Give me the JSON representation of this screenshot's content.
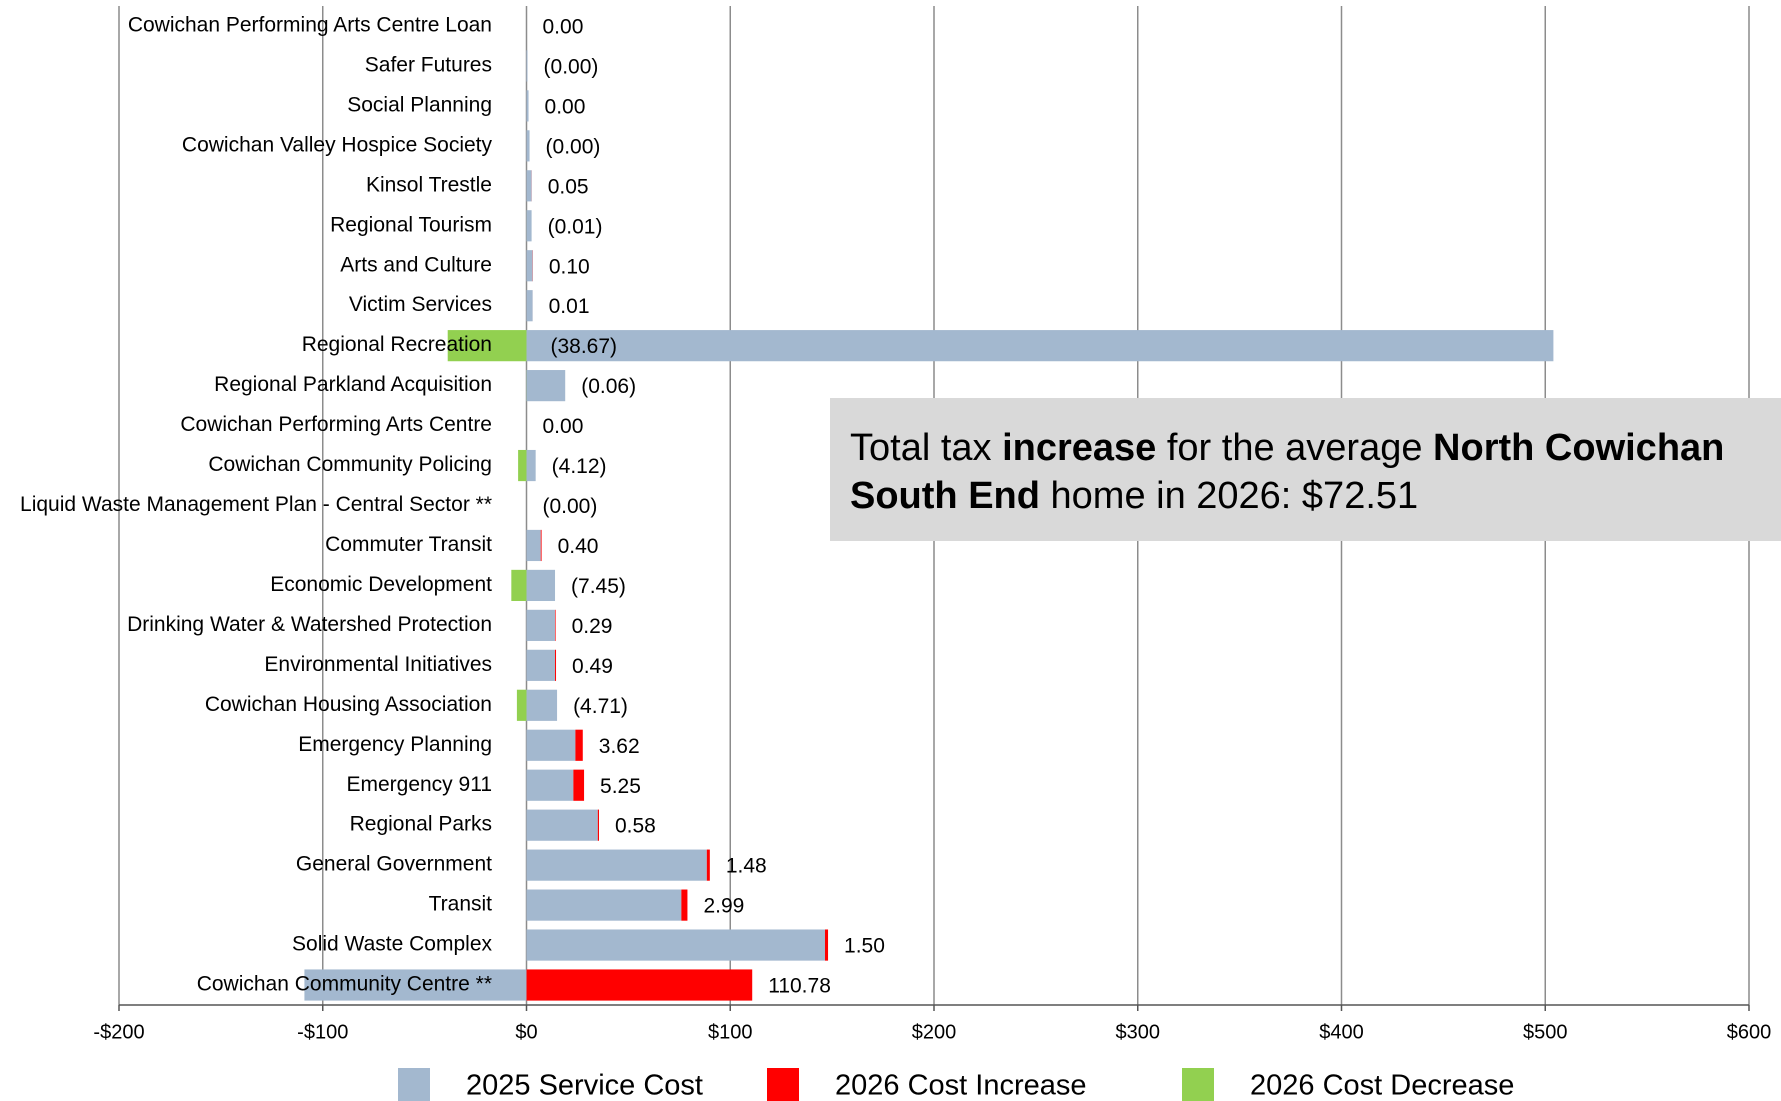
{
  "chart_data": {
    "type": "stacked_barh",
    "categories": [
      "Cowichan Performing Arts Centre Loan",
      "Safer Futures",
      "Social Planning",
      "Cowichan Valley Hospice Society",
      "Kinsol Trestle",
      "Regional Tourism",
      "Arts and Culture",
      "Victim Services",
      "Regional Recreation",
      "Regional Parkland Acquisition",
      "Cowichan Performing Arts Centre",
      "Cowichan Community Policing",
      "Liquid Waste Management Plan - Central Sector **",
      "Commuter Transit",
      "Economic Development",
      "Drinking Water & Watershed Protection",
      "Environmental Initiatives",
      "Cowichan Housing Association",
      "Emergency Planning",
      "Emergency 911",
      "Regional Parks",
      "General Government",
      "Transit",
      "Solid Waste Complex",
      "Cowichan Community Centre  **"
    ],
    "series": [
      {
        "name": "2025 Service Cost",
        "color": "#a3b8cf",
        "values": [
          0,
          0.5,
          1,
          1.5,
          2.5,
          2.5,
          3,
          3,
          504,
          19,
          0,
          4.5,
          0,
          7,
          14,
          14,
          14,
          15,
          24,
          23,
          35,
          88.5,
          76,
          146.5,
          -109
        ]
      },
      {
        "name": "2026 Cost Increase",
        "color": "#ff0000",
        "values": [
          0,
          null,
          0,
          null,
          0.05,
          null,
          0.1,
          0.01,
          null,
          null,
          0,
          null,
          null,
          0.4,
          null,
          0.29,
          0.49,
          null,
          3.62,
          5.25,
          0.58,
          1.48,
          2.99,
          1.5,
          110.78
        ],
        "value_labels": [
          "0.00",
          null,
          "0.00",
          null,
          "0.05",
          null,
          "0.10",
          "0.01",
          null,
          null,
          "0.00",
          null,
          null,
          "0.40",
          null,
          "0.29",
          "0.49",
          null,
          "3.62",
          "5.25",
          "0.58",
          "1.48",
          "2.99",
          "1.50",
          "110.78"
        ]
      },
      {
        "name": "2026 Cost Decrease",
        "color": "#92d050",
        "values": [
          null,
          0,
          null,
          0,
          null,
          -0.01,
          null,
          null,
          -38.67,
          -0.06,
          null,
          -4.12,
          0,
          null,
          -7.45,
          null,
          null,
          -4.71,
          null,
          null,
          null,
          null,
          null,
          null,
          null
        ],
        "value_labels": [
          null,
          "(0.00)",
          null,
          "(0.00)",
          null,
          "(0.01)",
          null,
          null,
          "(38.67)",
          "(0.06)",
          null,
          "(4.12)",
          "(0.00)",
          null,
          "(7.45)",
          null,
          null,
          "(4.71)",
          null,
          null,
          null,
          null,
          null,
          null,
          null
        ]
      }
    ],
    "xlim": [
      -200,
      600
    ],
    "xticks": [
      {
        "value": -200,
        "label": "-$200"
      },
      {
        "value": -100,
        "label": "-$100"
      },
      {
        "value": 0,
        "label": "$0"
      },
      {
        "value": 100,
        "label": "$100"
      },
      {
        "value": 200,
        "label": "$200"
      },
      {
        "value": 300,
        "label": "$300"
      },
      {
        "value": 400,
        "label": "$400"
      },
      {
        "value": 500,
        "label": "$500"
      },
      {
        "value": 600,
        "label": "$600"
      }
    ],
    "grid": true,
    "legend": "bottom",
    "annotation": [
      {
        "text": "Total tax ",
        "bold": false
      },
      {
        "text": "increase",
        "bold": true
      },
      {
        "text": " for the average ",
        "bold": false
      },
      {
        "text": "North Cowichan South End",
        "bold": true
      },
      {
        "text": " home in 2026: $72.51",
        "bold": false
      }
    ]
  }
}
